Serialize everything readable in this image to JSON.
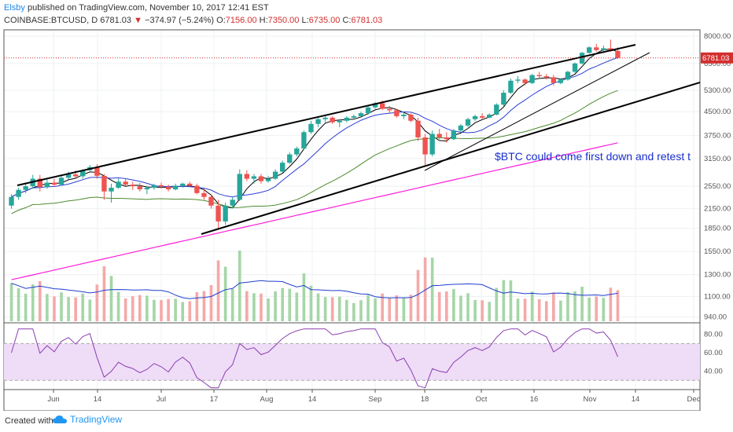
{
  "header": {
    "publisher": "Elsby",
    "published_text": "published on TradingView.com, November 10, 2017 12:41 EST",
    "symbol": "COINBASE:BTCUSD, D",
    "last": "6781.03",
    "change": "−374.97 (−5.24%)",
    "open_label": "O:",
    "open": "7156.00",
    "high_label": "H:",
    "high": "7350.00",
    "low_label": "L:",
    "low": "6735.00",
    "close_label": "C:",
    "close": "6781.03"
  },
  "footer": {
    "created_label": "Created with",
    "brand": "TradingView"
  },
  "chart_data": {
    "type": "candlestick",
    "x_ticks": [
      "Jun",
      "14",
      "Jul",
      "17",
      "Aug",
      "14",
      "Sep",
      "18",
      "Oct",
      "16",
      "Nov",
      "14",
      "Dec"
    ],
    "y_ticks": [
      "8000.00",
      "6500.00",
      "5300.00",
      "4500.00",
      "3750.00",
      "3150.00",
      "2550.00",
      "2150.00",
      "1850.00",
      "1550.00",
      "1300.00",
      "1100.00",
      "940.00"
    ],
    "price_scale": "log",
    "price_range": [
      900,
      8400
    ],
    "last_price_label": "6781.03",
    "rsi_ticks": [
      "80.00",
      "60.00",
      "40.00"
    ],
    "rsi_levels": [
      70,
      30
    ],
    "annotation": "$BTC could come first down and retest t",
    "candles": [
      [
        2200,
        2400,
        2150,
        2350
      ],
      [
        2350,
        2520,
        2300,
        2480
      ],
      [
        2480,
        2600,
        2420,
        2550
      ],
      [
        2550,
        2780,
        2500,
        2700
      ],
      [
        2700,
        2780,
        2450,
        2530
      ],
      [
        2530,
        2680,
        2500,
        2620
      ],
      [
        2620,
        2700,
        2540,
        2580
      ],
      [
        2580,
        2760,
        2560,
        2720
      ],
      [
        2720,
        2850,
        2690,
        2790
      ],
      [
        2790,
        2880,
        2720,
        2750
      ],
      [
        2750,
        2900,
        2700,
        2880
      ],
      [
        2880,
        3000,
        2860,
        2950
      ],
      [
        2950,
        3020,
        2700,
        2760
      ],
      [
        2760,
        2800,
        2300,
        2450
      ],
      [
        2450,
        2600,
        2250,
        2520
      ],
      [
        2520,
        2700,
        2500,
        2640
      ],
      [
        2640,
        2700,
        2560,
        2580
      ],
      [
        2580,
        2640,
        2480,
        2550
      ],
      [
        2550,
        2620,
        2450,
        2490
      ],
      [
        2490,
        2560,
        2400,
        2520
      ],
      [
        2520,
        2600,
        2480,
        2570
      ],
      [
        2570,
        2620,
        2500,
        2540
      ],
      [
        2540,
        2580,
        2450,
        2490
      ],
      [
        2490,
        2600,
        2470,
        2560
      ],
      [
        2560,
        2620,
        2520,
        2600
      ],
      [
        2600,
        2640,
        2530,
        2560
      ],
      [
        2560,
        2600,
        2400,
        2420
      ],
      [
        2420,
        2500,
        2300,
        2350
      ],
      [
        2350,
        2400,
        2150,
        2200
      ],
      [
        2200,
        2300,
        1850,
        1950
      ],
      [
        1950,
        2250,
        1900,
        2200
      ],
      [
        2200,
        2350,
        2150,
        2300
      ],
      [
        2300,
        2900,
        2280,
        2800
      ],
      [
        2800,
        2880,
        2650,
        2700
      ],
      [
        2700,
        2800,
        2600,
        2750
      ],
      [
        2750,
        2800,
        2600,
        2650
      ],
      [
        2650,
        2760,
        2620,
        2700
      ],
      [
        2700,
        2900,
        2680,
        2850
      ],
      [
        2850,
        3100,
        2830,
        3050
      ],
      [
        3050,
        3300,
        3020,
        3250
      ],
      [
        3250,
        3450,
        3200,
        3400
      ],
      [
        3400,
        3900,
        3380,
        3850
      ],
      [
        3850,
        4200,
        3800,
        4100
      ],
      [
        4100,
        4300,
        4000,
        4250
      ],
      [
        4250,
        4400,
        4150,
        4300
      ],
      [
        4300,
        4350,
        4100,
        4150
      ],
      [
        4150,
        4250,
        4000,
        4200
      ],
      [
        4200,
        4350,
        4150,
        4300
      ],
      [
        4300,
        4400,
        4250,
        4350
      ],
      [
        4350,
        4500,
        4300,
        4450
      ],
      [
        4450,
        4700,
        4400,
        4650
      ],
      [
        4650,
        4850,
        4600,
        4800
      ],
      [
        4800,
        4900,
        4550,
        4600
      ],
      [
        4600,
        4700,
        4450,
        4550
      ],
      [
        4550,
        4600,
        4300,
        4350
      ],
      [
        4350,
        4500,
        4250,
        4400
      ],
      [
        4400,
        4450,
        4150,
        4200
      ],
      [
        4200,
        4300,
        3600,
        3700
      ],
      [
        3700,
        3800,
        3000,
        3250
      ],
      [
        3250,
        3900,
        3200,
        3800
      ],
      [
        3800,
        3950,
        3650,
        3700
      ],
      [
        3700,
        3850,
        3550,
        3650
      ],
      [
        3650,
        3950,
        3620,
        3900
      ],
      [
        3900,
        4100,
        3850,
        4050
      ],
      [
        4050,
        4300,
        4000,
        4250
      ],
      [
        4250,
        4400,
        4200,
        4350
      ],
      [
        4350,
        4450,
        4250,
        4300
      ],
      [
        4300,
        4450,
        4280,
        4400
      ],
      [
        4400,
        4800,
        4380,
        4750
      ],
      [
        4750,
        5300,
        4700,
        5200
      ],
      [
        5200,
        5800,
        5150,
        5700
      ],
      [
        5700,
        5900,
        5600,
        5750
      ],
      [
        5750,
        5800,
        5500,
        5600
      ],
      [
        5600,
        6000,
        5550,
        5950
      ],
      [
        5950,
        6100,
        5800,
        5900
      ],
      [
        5900,
        6000,
        5750,
        5850
      ],
      [
        5850,
        5950,
        5500,
        5600
      ],
      [
        5600,
        5800,
        5550,
        5750
      ],
      [
        5750,
        6150,
        5700,
        6100
      ],
      [
        6100,
        6550,
        6050,
        6500
      ],
      [
        6500,
        7100,
        6450,
        7050
      ],
      [
        7050,
        7400,
        7000,
        7350
      ],
      [
        7350,
        7550,
        7100,
        7200
      ],
      [
        7200,
        7450,
        7050,
        7300
      ],
      [
        7300,
        7800,
        7100,
        7150
      ],
      [
        7156,
        7350,
        6735,
        6781.03
      ]
    ]
  },
  "colors": {
    "up": "#26a69a",
    "down": "#ef5350",
    "ma_fast": "#000000",
    "ma_mid": "#2a3fd6",
    "ma_slow": "#4c8a2e",
    "ma_long": "#ff1ad9",
    "rsi": "#8a3fb0",
    "rsi_band": "#efdcf7",
    "volume_ma": "#1f3fcf",
    "last_price": "#d32f2f",
    "annotation": "#1a2fcc"
  }
}
